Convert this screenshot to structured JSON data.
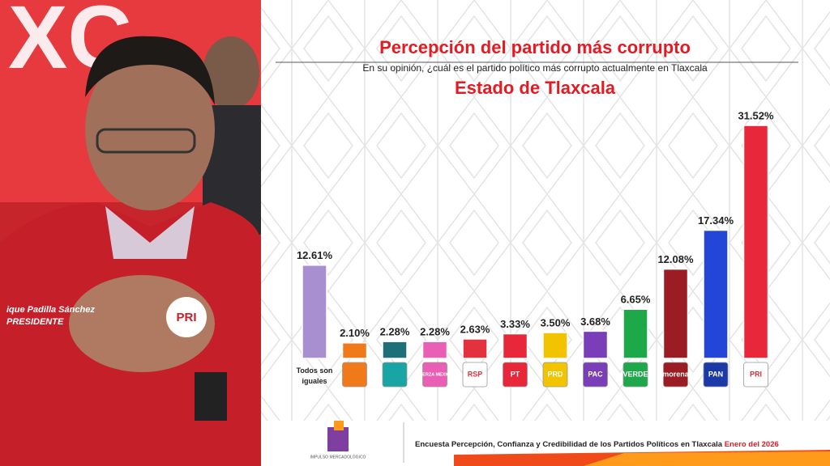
{
  "photo": {
    "badge_name": "ique Padilla Sánchez",
    "badge_title": "PRESIDENTE",
    "badge_logo": "PRI"
  },
  "chart_data": {
    "type": "bar",
    "title": "Percepción del partido más corrupto",
    "subtitle": "En su opinión, ¿cuál es el partido político más corrupto actualmente en Tlaxcala",
    "region": "Estado de Tlaxcala",
    "categories": [
      "Todos son iguales",
      null,
      null,
      "FUERZA MEXICO",
      "RSP",
      "PT",
      "PRD",
      "PAC",
      "VERDE",
      "morena",
      "PAN",
      "PRI"
    ],
    "values": [
      12.61,
      2.1,
      2.28,
      2.28,
      2.63,
      3.33,
      3.5,
      3.68,
      6.65,
      12.08,
      17.34,
      31.52
    ],
    "value_labels": [
      "12.61%",
      "2.10%",
      "2.28%",
      "2.28%",
      "2.63%",
      "3.33%",
      "3.50%",
      "3.68%",
      "6.65%",
      "12.08%",
      "17.34%",
      "31.52%"
    ],
    "colors": [
      "#a88fd0",
      "#f07a1a",
      "#1f6f78",
      "#e85fb5",
      "#e23240",
      "#e8283a",
      "#f2c400",
      "#7a3fb8",
      "#1fa84a",
      "#9b1c22",
      "#2446d8",
      "#e8283a"
    ],
    "logo_colors": [
      null,
      "#f07a1a",
      "#1aa5a5",
      "#e85fb5",
      "#ffffff",
      "#e8283a",
      "#f2c400",
      "#7a3fb8",
      "#1fa84a",
      "#9b1c22",
      "#1b3aa8",
      "#ffffff"
    ],
    "source": "Encuesta Percepción, Confianza y Credibilidad de los Partidos Políticos en Tlaxcala",
    "date": "Enero del 2026",
    "brand": "IMPULSO MERCADOLÓGICO"
  }
}
